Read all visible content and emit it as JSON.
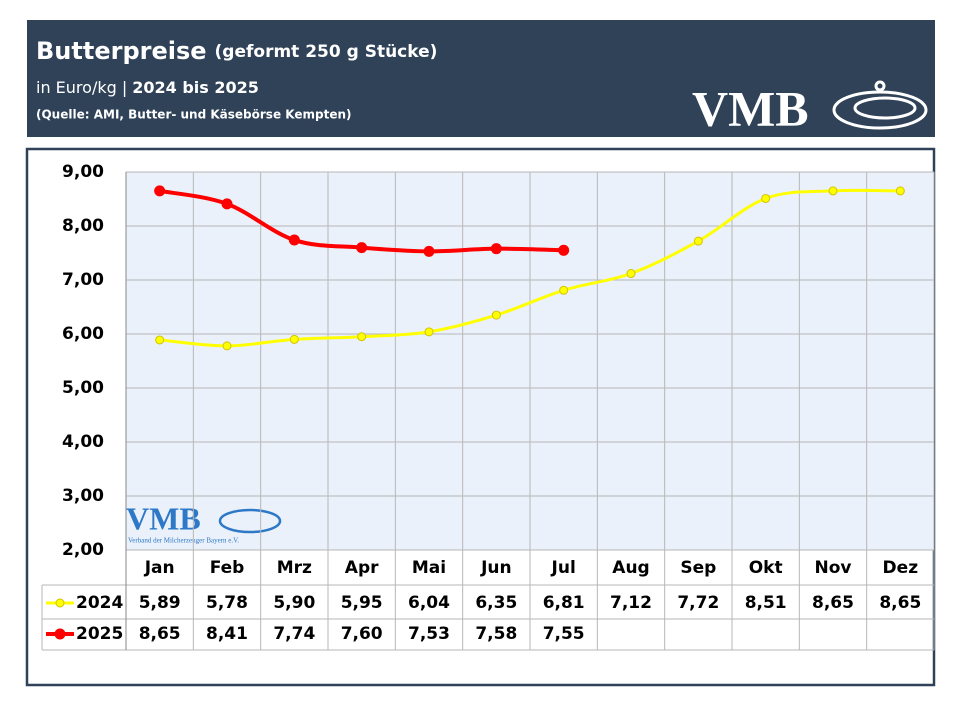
{
  "header": {
    "title": "Butterpreise",
    "title_note": "(geformt 250 g Stücke)",
    "subtitle_unit": "in Euro/kg |",
    "subtitle_years": "2024 bis 2025",
    "source": "(Quelle: AMI, Butter- und Käsebörse Kempten)",
    "logo": "VMB"
  },
  "watermark": {
    "logo": "VMB",
    "text": "Verband der Milcherzeuger Bayern e.V."
  },
  "chart_data": {
    "type": "line",
    "categories": [
      "Jan",
      "Feb",
      "Mrz",
      "Apr",
      "Mai",
      "Jun",
      "Jul",
      "Aug",
      "Sep",
      "Okt",
      "Nov",
      "Dez"
    ],
    "series": [
      {
        "name": "2024",
        "color": "#ffff00",
        "values": [
          5.89,
          5.78,
          5.9,
          5.95,
          6.04,
          6.35,
          6.81,
          7.12,
          7.72,
          8.51,
          8.65,
          8.65
        ],
        "value_labels": [
          "5,89",
          "5,78",
          "5,90",
          "5,95",
          "6,04",
          "6,35",
          "6,81",
          "7,12",
          "7,72",
          "8,51",
          "8,65",
          "8,65"
        ]
      },
      {
        "name": "2025",
        "color": "#ff0000",
        "values": [
          8.65,
          8.41,
          7.74,
          7.6,
          7.53,
          7.58,
          7.55,
          null,
          null,
          null,
          null,
          null
        ],
        "value_labels": [
          "8,65",
          "8,41",
          "7,74",
          "7,60",
          "7,53",
          "7,58",
          "7,55",
          null,
          null,
          null,
          null,
          null
        ]
      }
    ],
    "ylim": [
      2,
      9
    ],
    "yticks": [
      {
        "value": 2,
        "label": "2,00"
      },
      {
        "value": 3,
        "label": "3,00"
      },
      {
        "value": 4,
        "label": "4,00"
      },
      {
        "value": 5,
        "label": "5,00"
      },
      {
        "value": 6,
        "label": "6,00"
      },
      {
        "value": 7,
        "label": "7,00"
      },
      {
        "value": 8,
        "label": "8,00"
      },
      {
        "value": 9,
        "label": "9,00"
      }
    ],
    "grid": true
  }
}
